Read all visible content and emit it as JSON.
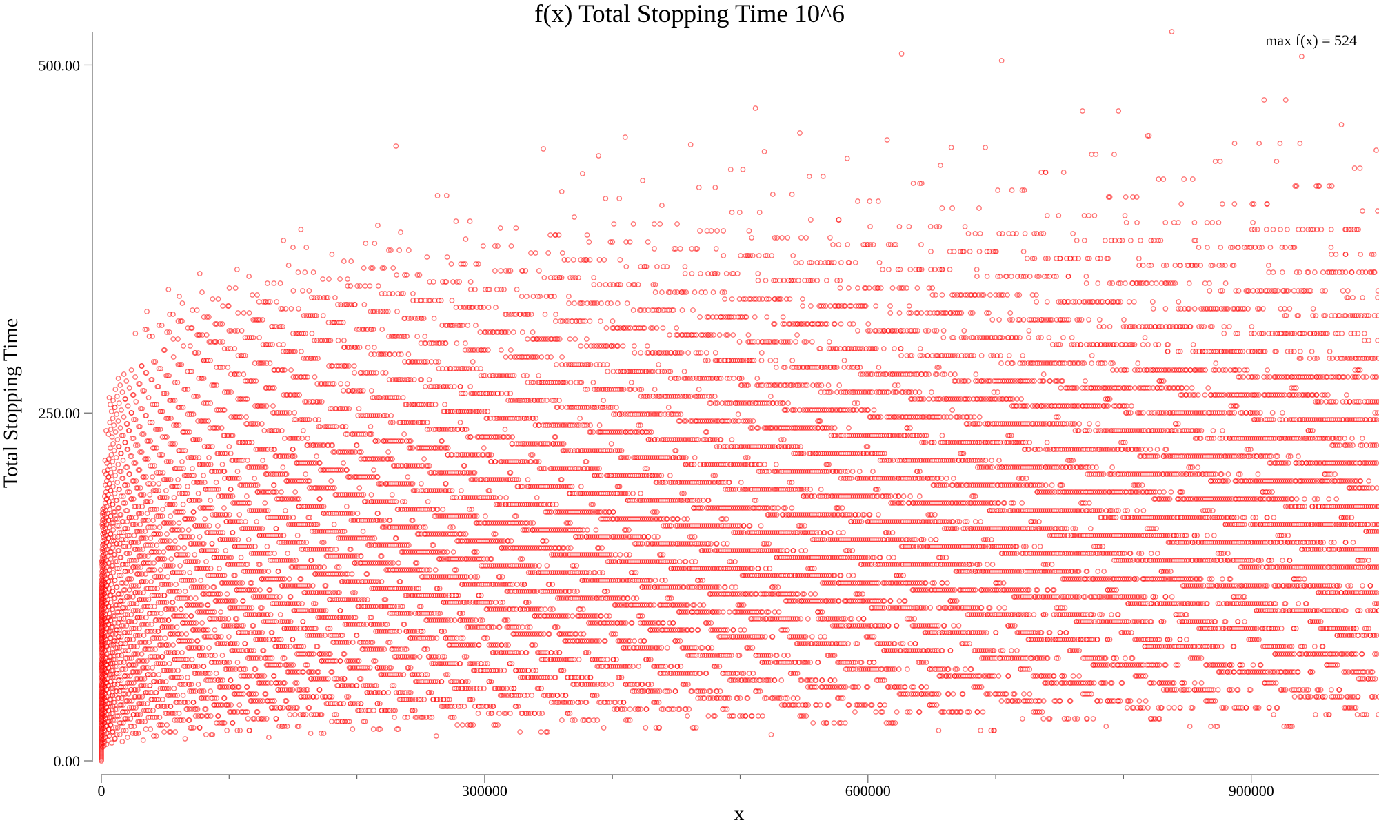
{
  "chart_data": {
    "type": "scatter",
    "title": "f(x) Total Stopping Time 10^6",
    "xlabel": "x",
    "ylabel": "Total Stopping Time",
    "xlim": [
      0,
      1000000
    ],
    "ylim": [
      0,
      524
    ],
    "x_ticks": [
      0,
      300000,
      600000,
      900000
    ],
    "x_tick_labels": [
      "0",
      "300000",
      "600000",
      "900000"
    ],
    "x_minor_ticks": [
      100000,
      200000,
      400000,
      500000,
      700000,
      800000
    ],
    "y_ticks": [
      0,
      250,
      500
    ],
    "y_tick_labels": [
      "0.00",
      "250.00",
      "500.00"
    ],
    "annotation": "max f(x) = 524",
    "marker": "hollow-circle",
    "grid": false,
    "legend": "none",
    "colors": {
      "points": "#ff0000"
    },
    "series": [
      {
        "points_description": "Collatz total stopping time for every integer x in [1, 1000000]; rendered by computing the sequence",
        "max": 524,
        "max_at_x_approx": 837799,
        "sample_points": [
          [
            12000,
            270
          ],
          [
            30000,
            320
          ],
          [
            75000,
            350
          ],
          [
            125000,
            372
          ],
          [
            232000,
            442
          ],
          [
            263000,
            407
          ],
          [
            410000,
            447
          ],
          [
            463000,
            443
          ],
          [
            500000,
            460
          ],
          [
            540000,
            456
          ],
          [
            625000,
            509
          ],
          [
            702000,
            503
          ],
          [
            837799,
            524
          ],
          [
            1000000,
            410
          ]
        ]
      }
    ]
  }
}
